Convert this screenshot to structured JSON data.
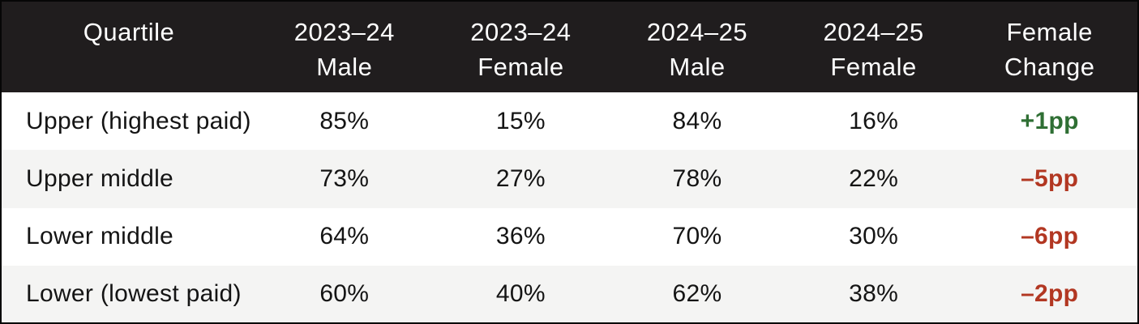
{
  "colors": {
    "header_bg": "#201d1e",
    "stripe": "#f4f4f3",
    "positive": "#2f6f34",
    "negative": "#b23722"
  },
  "chart_data": {
    "type": "table",
    "columns": [
      {
        "line1": "Quartile",
        "line2": ""
      },
      {
        "line1": "2023–24",
        "line2": "Male"
      },
      {
        "line1": "2023–24",
        "line2": "Female"
      },
      {
        "line1": "2024–25",
        "line2": "Male"
      },
      {
        "line1": "2024–25",
        "line2": "Female"
      },
      {
        "line1": "Female",
        "line2": "Change"
      }
    ],
    "rows": [
      {
        "quartile": "Upper (highest paid)",
        "male_2023_24": "85%",
        "female_2023_24": "15%",
        "male_2024_25": "84%",
        "female_2024_25": "16%",
        "change": "+1pp"
      },
      {
        "quartile": "Upper middle",
        "male_2023_24": "73%",
        "female_2023_24": "27%",
        "male_2024_25": "78%",
        "female_2024_25": "22%",
        "change": "–5pp"
      },
      {
        "quartile": "Lower middle",
        "male_2023_24": "64%",
        "female_2023_24": "36%",
        "male_2024_25": "70%",
        "female_2024_25": "30%",
        "change": "–6pp"
      },
      {
        "quartile": "Lower (lowest paid)",
        "male_2023_24": "60%",
        "female_2023_24": "40%",
        "male_2024_25": "62%",
        "female_2024_25": "38%",
        "change": "–2pp"
      }
    ]
  }
}
